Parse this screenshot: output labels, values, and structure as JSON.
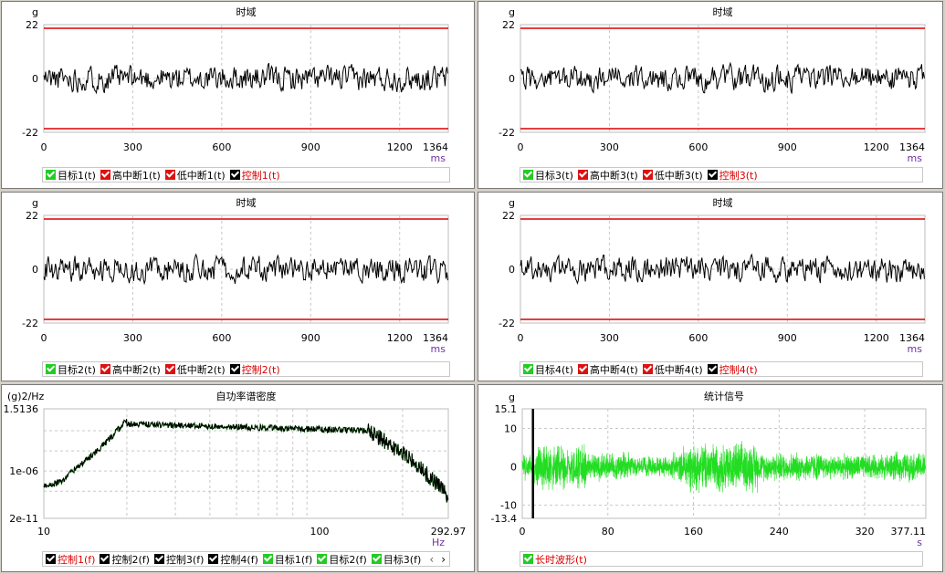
{
  "colors": {
    "grid": "#c8c8c8",
    "limit": "#d90000",
    "trace": "#000000",
    "green": "#22dd22",
    "label": "#7030a0",
    "red_text": "#d90000"
  },
  "time_charts": [
    {
      "title": "时域",
      "unit_y": "g",
      "unit_x": "ms",
      "yticks": [
        "22",
        "0",
        "-22"
      ],
      "xticks": [
        "0",
        "300",
        "600",
        "900",
        "1200",
        "1364"
      ],
      "ylim": [
        -22,
        22
      ],
      "xlim": [
        0,
        1364
      ],
      "limits": [
        20.5,
        -20.5
      ],
      "legend": [
        {
          "label": "目标1(t)",
          "box": "#22cc22"
        },
        {
          "label": "高中断1(t)",
          "box": "#dd1111"
        },
        {
          "label": "低中断1(t)",
          "box": "#dd1111"
        },
        {
          "label": "控制1(t)",
          "box": "#000000",
          "red": true
        }
      ]
    },
    {
      "title": "时域",
      "unit_y": "g",
      "unit_x": "ms",
      "yticks": [
        "22",
        "0",
        "-22"
      ],
      "xticks": [
        "0",
        "300",
        "600",
        "900",
        "1200",
        "1364"
      ],
      "ylim": [
        -22,
        22
      ],
      "xlim": [
        0,
        1364
      ],
      "limits": [
        20.5,
        -20.5
      ],
      "legend": [
        {
          "label": "目标3(t)",
          "box": "#22cc22"
        },
        {
          "label": "高中断3(t)",
          "box": "#dd1111"
        },
        {
          "label": "低中断3(t)",
          "box": "#dd1111"
        },
        {
          "label": "控制3(t)",
          "box": "#000000",
          "red": true
        }
      ]
    },
    {
      "title": "时域",
      "unit_y": "g",
      "unit_x": "ms",
      "yticks": [
        "22",
        "0",
        "-22"
      ],
      "xticks": [
        "0",
        "300",
        "600",
        "900",
        "1200",
        "1364"
      ],
      "ylim": [
        -22,
        22
      ],
      "xlim": [
        0,
        1364
      ],
      "limits": [
        20.5,
        -20.5
      ],
      "legend": [
        {
          "label": "目标2(t)",
          "box": "#22cc22"
        },
        {
          "label": "高中断2(t)",
          "box": "#dd1111"
        },
        {
          "label": "低中断2(t)",
          "box": "#dd1111"
        },
        {
          "label": "控制2(t)",
          "box": "#000000",
          "red": true
        }
      ]
    },
    {
      "title": "时域",
      "unit_y": "g",
      "unit_x": "ms",
      "yticks": [
        "22",
        "0",
        "-22"
      ],
      "xticks": [
        "0",
        "300",
        "600",
        "900",
        "1200",
        "1364"
      ],
      "ylim": [
        -22,
        22
      ],
      "xlim": [
        0,
        1364
      ],
      "limits": [
        20.5,
        -20.5
      ],
      "legend": [
        {
          "label": "目标4(t)",
          "box": "#22cc22"
        },
        {
          "label": "高中断4(t)",
          "box": "#dd1111"
        },
        {
          "label": "低中断4(t)",
          "box": "#dd1111"
        },
        {
          "label": "控制4(t)",
          "box": "#000000",
          "red": true
        }
      ]
    }
  ],
  "psd_chart": {
    "title": "自功率谱密度",
    "unit_y": "(g)2/Hz",
    "unit_x": "Hz",
    "yticks": [
      "1.5136",
      "1e-06",
      "2e-11"
    ],
    "xticks": [
      "10",
      "100",
      "292.97"
    ],
    "legend": [
      {
        "label": "控制1(f)",
        "box": "#000000",
        "red": true
      },
      {
        "label": "控制2(f)",
        "box": "#000000"
      },
      {
        "label": "控制3(f)",
        "box": "#000000"
      },
      {
        "label": "控制4(f)",
        "box": "#000000"
      },
      {
        "label": "目标1(f)",
        "box": "#22cc22"
      },
      {
        "label": "目标2(f)",
        "box": "#22cc22"
      },
      {
        "label": "目标3(f)",
        "box": "#22cc22"
      }
    ],
    "scroll": {
      "left": "‹",
      "right": "›"
    }
  },
  "stat_chart": {
    "title": "统计信号",
    "unit_y": "g",
    "unit_x": "s",
    "yticks": [
      "15.1",
      "10",
      "0",
      "-10",
      "-13.4"
    ],
    "xticks": [
      "0",
      "80",
      "160",
      "240",
      "320",
      "377.11"
    ],
    "ylim": [
      -13.4,
      15.1
    ],
    "xlim": [
      0,
      377.11
    ],
    "legend": [
      {
        "label": "长时波形(t)",
        "box": "#22cc22",
        "red": true
      }
    ]
  },
  "chart_data": [
    {
      "type": "line",
      "title": "时域",
      "ylabel": "g",
      "xlabel": "ms",
      "xlim": [
        0,
        1364
      ],
      "ylim": [
        -22,
        22
      ],
      "series": [
        {
          "name": "控制1(t)",
          "values": "random ~±6 g"
        },
        {
          "name": "高中断1(t)",
          "values": [
            20.5
          ]
        },
        {
          "name": "低中断1(t)",
          "values": [
            -20.5
          ]
        }
      ]
    },
    {
      "type": "line",
      "title": "时域",
      "ylabel": "g",
      "xlabel": "ms",
      "xlim": [
        0,
        1364
      ],
      "ylim": [
        -22,
        22
      ],
      "series": [
        {
          "name": "控制3(t)",
          "values": "random ~±6 g"
        },
        {
          "name": "高中断3(t)",
          "values": [
            20.5
          ]
        },
        {
          "name": "低中断3(t)",
          "values": [
            -20.5
          ]
        }
      ]
    },
    {
      "type": "line",
      "title": "时域",
      "ylabel": "g",
      "xlabel": "ms",
      "xlim": [
        0,
        1364
      ],
      "ylim": [
        -22,
        22
      ],
      "series": [
        {
          "name": "控制2(t)",
          "values": "random ~±6 g"
        },
        {
          "name": "高中断2(t)",
          "values": [
            20.5
          ]
        },
        {
          "name": "低中断2(t)",
          "values": [
            -20.5
          ]
        }
      ]
    },
    {
      "type": "line",
      "title": "时域",
      "ylabel": "g",
      "xlabel": "ms",
      "xlim": [
        0,
        1364
      ],
      "ylim": [
        -22,
        22
      ],
      "series": [
        {
          "name": "控制4(t)",
          "values": "random ~±6 g"
        },
        {
          "name": "高中断4(t)",
          "values": [
            20.5
          ]
        },
        {
          "name": "低中断4(t)",
          "values": [
            -20.5
          ]
        }
      ]
    },
    {
      "type": "line",
      "title": "自功率谱密度",
      "ylabel": "(g)2/Hz",
      "xlabel": "Hz",
      "xscale": "log",
      "yscale": "log",
      "xlim": [
        10,
        292.97
      ],
      "ylim": [
        2e-11,
        1.5136
      ]
    },
    {
      "type": "line",
      "title": "统计信号",
      "ylabel": "g",
      "xlabel": "s",
      "xlim": [
        0,
        377.11
      ],
      "ylim": [
        -13.4,
        15.1
      ],
      "series": [
        {
          "name": "长时波形(t)",
          "values": "random"
        }
      ]
    }
  ]
}
